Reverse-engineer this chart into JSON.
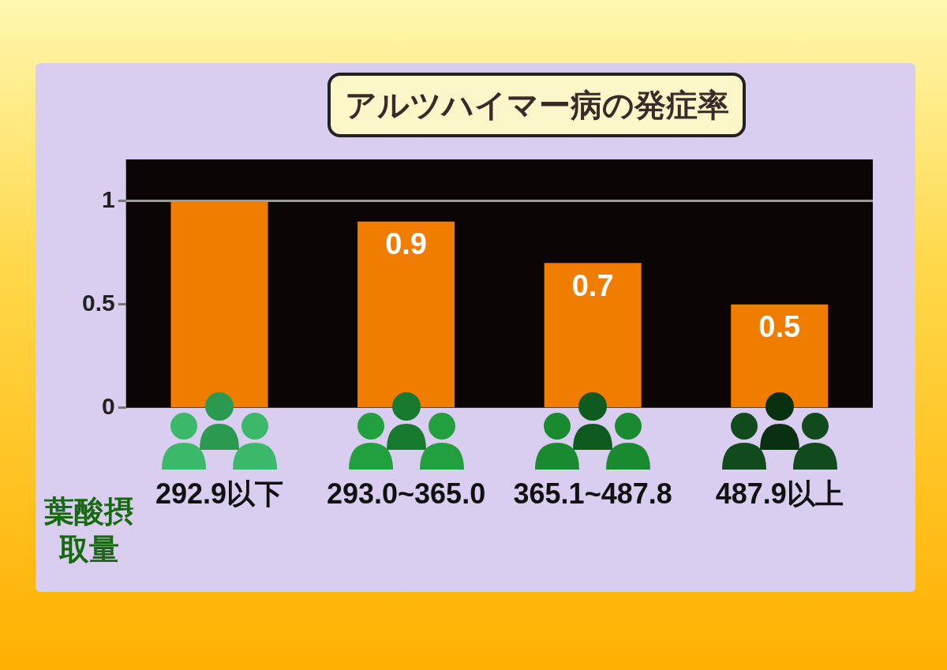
{
  "chart_data": {
    "type": "bar",
    "title": "アルツハイマー病の発症率",
    "xlabel": "葉酸摂取量",
    "categories": [
      "292.9以下",
      "293.0~365.0",
      "365.1~487.8",
      "487.9以上"
    ],
    "values": [
      1,
      0.9,
      0.7,
      0.5
    ],
    "value_labels": [
      null,
      "0.9",
      "0.7",
      "0.5"
    ],
    "color": "#f07d00",
    "ylim": [
      0,
      1.2
    ],
    "yticks": [
      0,
      0.5,
      1
    ],
    "ref_lines": [
      {
        "axis": "y",
        "value": 1,
        "color": "#9a9a9a"
      }
    ],
    "grid": false,
    "legend": false
  }
}
